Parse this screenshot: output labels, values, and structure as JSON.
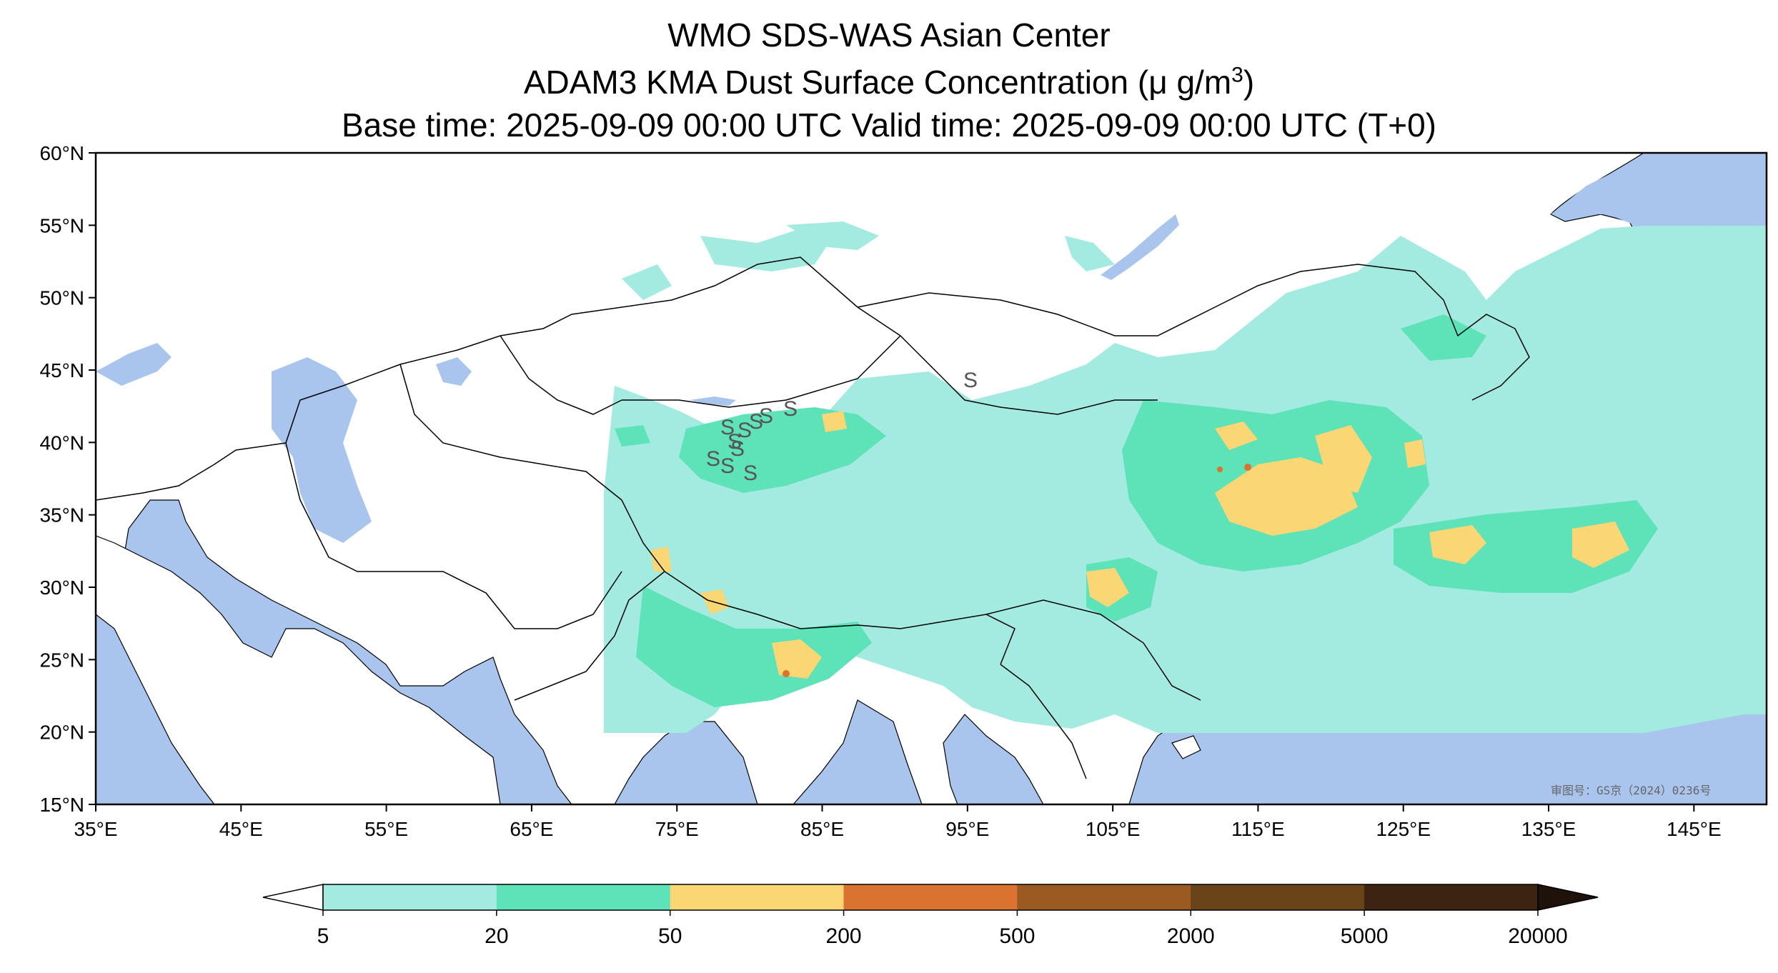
{
  "title": {
    "line1": "WMO SDS-WAS Asian Center",
    "line2_prefix": "ADAM3 KMA Dust Surface Concentration (",
    "line2_unit": "μ g/m",
    "line2_exp": "3",
    "line2_suffix": ")",
    "line3": "Base time: 2025-09-09 00:00 UTC Valid time: 2025-09-09 00:00 UTC (T+0)"
  },
  "map": {
    "lon_range": [
      35,
      150
    ],
    "lat_range": [
      15,
      60
    ],
    "lon_ticks": [
      "35°E",
      "45°E",
      "55°E",
      "65°E",
      "75°E",
      "85°E",
      "95°E",
      "105°E",
      "115°E",
      "125°E",
      "135°E",
      "145°E"
    ],
    "lat_ticks": [
      "15°N",
      "20°N",
      "25°N",
      "30°N",
      "35°N",
      "40°N",
      "45°N",
      "50°N",
      "55°N",
      "60°N"
    ],
    "ocean_color": "#a9c5ee",
    "land_color": "#ffffff",
    "stamp_text": "审图号：GS京（2024）0236号",
    "symbol": "S"
  },
  "colorbar": {
    "boundaries": [
      "5",
      "20",
      "50",
      "200",
      "500",
      "2000",
      "5000",
      "20000"
    ],
    "colors": [
      "#a3ebe0",
      "#5ee2b8",
      "#fad674",
      "#da7230",
      "#9a5a22",
      "#6a4419",
      "#3c2410"
    ],
    "under_color": "#ffffff",
    "over_color": "#1e120a",
    "extend": "both"
  }
}
